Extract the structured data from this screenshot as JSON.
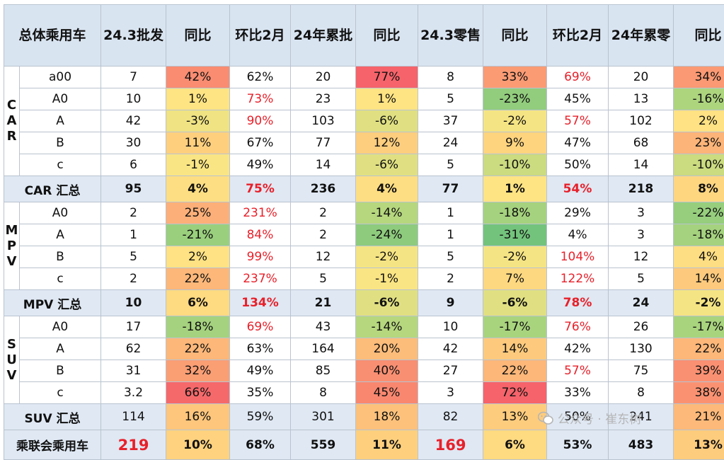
{
  "headers": [
    "总体乘用车",
    "24.3批发",
    "同比",
    "环比2月",
    "24年累批",
    "同比",
    "24.3零售",
    "同比",
    "环比2月",
    "24年累零",
    "同比"
  ],
  "groups": [
    {
      "label": "CAR",
      "chars": [
        "C",
        "A",
        "R"
      ],
      "rows": [
        {
          "seg": "a00",
          "cells": [
            "7",
            "42%",
            "62%",
            "20",
            "77%",
            "8",
            "33%",
            "69%",
            "20",
            "34%"
          ]
        },
        {
          "seg": "A0",
          "cells": [
            "10",
            "1%",
            "73%",
            "23",
            "1%",
            "5",
            "-23%",
            "45%",
            "13",
            "-16%"
          ]
        },
        {
          "seg": "A",
          "cells": [
            "42",
            "-3%",
            "90%",
            "103",
            "-6%",
            "37",
            "-2%",
            "57%",
            "102",
            "2%"
          ]
        },
        {
          "seg": "B",
          "cells": [
            "30",
            "11%",
            "67%",
            "77",
            "12%",
            "24",
            "9%",
            "47%",
            "68",
            "23%"
          ]
        },
        {
          "seg": "c",
          "cells": [
            "6",
            "-1%",
            "49%",
            "14",
            "-6%",
            "5",
            "-10%",
            "50%",
            "14",
            "-10%"
          ]
        }
      ],
      "summary": {
        "label": "CAR 汇总",
        "cells": [
          "95",
          "4%",
          "75%",
          "236",
          "4%",
          "77",
          "1%",
          "54%",
          "218",
          "8%"
        ]
      }
    },
    {
      "label": "MPV",
      "chars": [
        "M",
        "P",
        "V"
      ],
      "rows": [
        {
          "seg": "A0",
          "cells": [
            "2",
            "25%",
            "231%",
            "2",
            "-14%",
            "1",
            "-18%",
            "29%",
            "3",
            "-22%"
          ]
        },
        {
          "seg": "A",
          "cells": [
            "1",
            "-21%",
            "84%",
            "2",
            "-24%",
            "1",
            "-31%",
            "4%",
            "3",
            "-18%"
          ]
        },
        {
          "seg": "B",
          "cells": [
            "5",
            "2%",
            "99%",
            "12",
            "-2%",
            "5",
            "-2%",
            "104%",
            "12",
            "4%"
          ]
        },
        {
          "seg": "c",
          "cells": [
            "2",
            "22%",
            "237%",
            "5",
            "-1%",
            "2",
            "7%",
            "122%",
            "5",
            "14%"
          ]
        }
      ],
      "summary": {
        "label": "MPV 汇总",
        "cells": [
          "10",
          "6%",
          "134%",
          "21",
          "-6%",
          "9",
          "-6%",
          "78%",
          "24",
          "-2%"
        ]
      }
    },
    {
      "label": "SUV",
      "chars": [
        "S",
        "U",
        "V"
      ],
      "rows": [
        {
          "seg": "A0",
          "cells": [
            "17",
            "-18%",
            "69%",
            "43",
            "-14%",
            "10",
            "-17%",
            "76%",
            "26",
            "-17%"
          ]
        },
        {
          "seg": "A",
          "cells": [
            "62",
            "22%",
            "63%",
            "164",
            "20%",
            "42",
            "14%",
            "42%",
            "130",
            "22%"
          ]
        },
        {
          "seg": "B",
          "cells": [
            "31",
            "32%",
            "49%",
            "85",
            "40%",
            "27",
            "22%",
            "57%",
            "75",
            "39%"
          ]
        },
        {
          "seg": "c",
          "cells": [
            "3.2",
            "66%",
            "35%",
            "8",
            "45%",
            "3",
            "72%",
            "33%",
            "8",
            "38%"
          ]
        }
      ],
      "summary": {
        "label": "SUV 汇总",
        "cells": [
          "114",
          "16%",
          "59%",
          "301",
          "18%",
          "82",
          "13%",
          "50%",
          "241",
          "21%"
        ]
      }
    }
  ],
  "total": {
    "label": "乘联会乘用车",
    "cells": [
      "219",
      "10%",
      "68%",
      "559",
      "11%",
      "169",
      "6%",
      "53%",
      "483",
      "13%"
    ]
  },
  "watermark": "公众号 · 崔东树",
  "colors": {
    "header_bg": "#d9e4f1",
    "summary_bg": "#dfe8f3",
    "highlight_red": "#e8202a"
  }
}
